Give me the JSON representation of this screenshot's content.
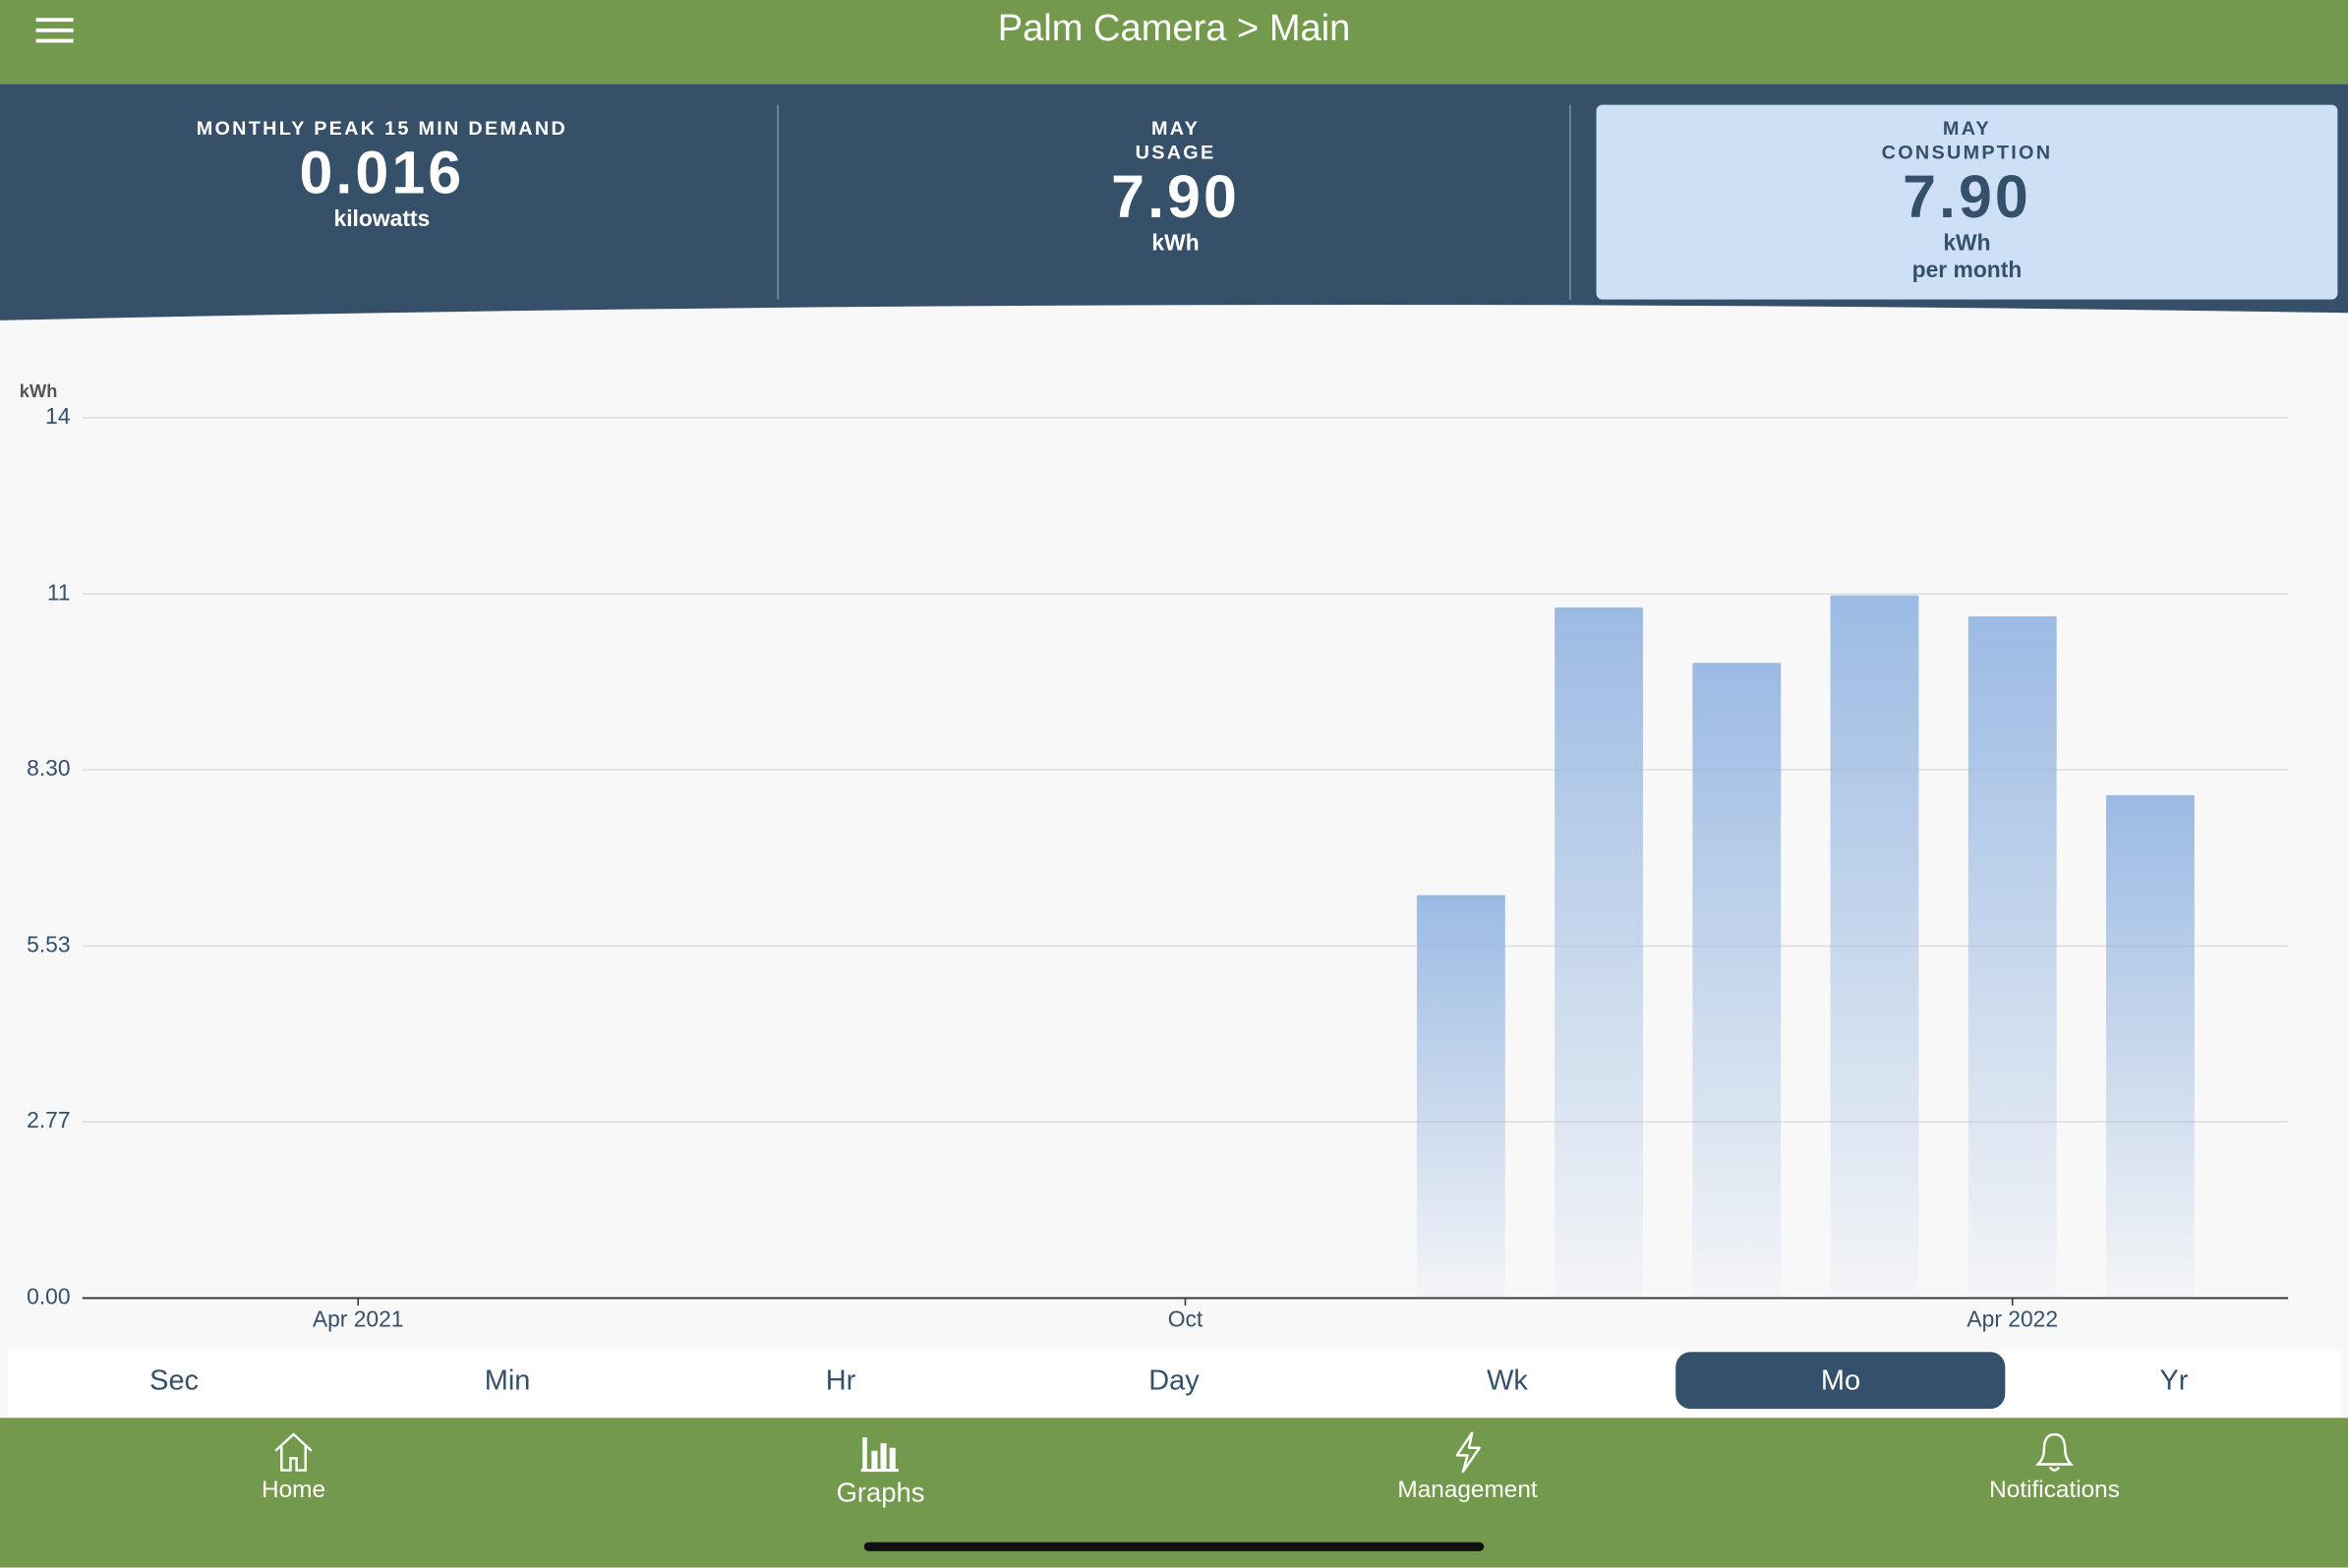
{
  "header": {
    "title": "Palm Camera > Main"
  },
  "stats": [
    {
      "lines": [
        "MONTHLY PEAK 15 MIN DEMAND"
      ],
      "value": "0.016",
      "units": [
        "kilowatts"
      ]
    },
    {
      "lines": [
        "MAY",
        "USAGE"
      ],
      "value": "7.90",
      "units": [
        "kWh"
      ]
    },
    {
      "lines": [
        "MAY",
        "CONSUMPTION"
      ],
      "value": "7.90",
      "units": [
        "kWh",
        "per month"
      ]
    }
  ],
  "chart_data": {
    "type": "bar",
    "y_label": "kWh",
    "x": [
      "2021-12",
      "2022-01",
      "2022-02",
      "2022-03",
      "2022-04",
      "2022-05"
    ],
    "values": [
      6.33,
      10.85,
      9.98,
      11.04,
      10.71,
      7.9
    ],
    "color": "#9bbae3",
    "xlim": [
      "2021-02",
      "2022-06"
    ],
    "xticks": [
      {
        "value": "2021-04",
        "label": "Apr 2021"
      },
      {
        "value": "2021-10",
        "label": "Oct"
      },
      {
        "value": "2022-04",
        "label": "Apr 2022"
      }
    ],
    "ylim": [
      0,
      13.83
    ],
    "yticks": [
      {
        "value": 0,
        "label": "0.00"
      },
      2.77,
      5.53,
      {
        "value": 8.3,
        "label": "8.30"
      },
      {
        "value": 11.06,
        "label": "11"
      },
      {
        "value": 13.83,
        "label": "14"
      }
    ],
    "grid": true
  },
  "tabs": {
    "items": [
      "Sec",
      "Min",
      "Hr",
      "Day",
      "Wk",
      "Mo",
      "Yr"
    ],
    "selected": "Mo"
  },
  "nav": [
    "Home",
    "Graphs",
    "Management",
    "Notifications"
  ]
}
